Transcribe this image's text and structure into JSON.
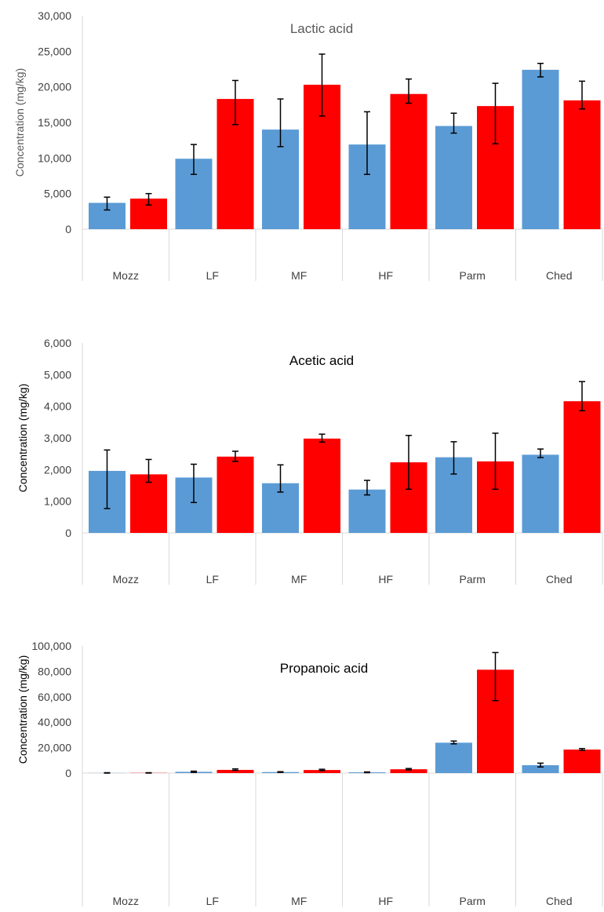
{
  "chart_data": [
    {
      "type": "bar",
      "title": "Lactic acid",
      "ylabel": "Concentration (mg/kg)",
      "categories": [
        "Mozz",
        "LF",
        "MF",
        "HF",
        "Parm",
        "Ched"
      ],
      "ylim": [
        0,
        30000
      ],
      "yticks": [
        0,
        5000,
        10000,
        15000,
        20000,
        25000,
        30000
      ],
      "ytick_labels": [
        "0",
        "5,000",
        "10,000",
        "15,000",
        "20,000",
        "25,000",
        "30,000"
      ],
      "series": [
        {
          "values": [
            3700,
            9900,
            14000,
            11900,
            14500,
            22400
          ],
          "err_low": [
            2700,
            7700,
            11600,
            7700,
            13500,
            21400
          ],
          "err_high": [
            4500,
            11900,
            18300,
            16500,
            16300,
            23300
          ]
        },
        {
          "values": [
            4300,
            18300,
            20300,
            19000,
            17300,
            18100
          ],
          "err_low": [
            3400,
            14700,
            15900,
            17700,
            12000,
            16900
          ],
          "err_high": [
            5000,
            20900,
            24600,
            21100,
            20500,
            20800
          ]
        }
      ],
      "colors": [
        "#5b9bd5",
        "#ff0000"
      ],
      "title_color": "#595959",
      "ylabel_color": "#595959",
      "legend": "none",
      "grid": false
    },
    {
      "type": "bar",
      "title": "Acetic acid",
      "ylabel": "Concentration (mg/kg)",
      "categories": [
        "Mozz",
        "LF",
        "MF",
        "HF",
        "Parm",
        "Ched"
      ],
      "ylim": [
        0,
        6000
      ],
      "yticks": [
        0,
        1000,
        2000,
        3000,
        4000,
        5000,
        6000
      ],
      "ytick_labels": [
        "0",
        "1,000",
        "2,000",
        "3,000",
        "4,000",
        "5,000",
        "6,000"
      ],
      "series": [
        {
          "values": [
            1960,
            1750,
            1570,
            1370,
            2390,
            2470
          ],
          "err_low": [
            770,
            960,
            1290,
            1200,
            1860,
            2380
          ],
          "err_high": [
            2620,
            2170,
            2150,
            1660,
            2880,
            2650
          ]
        },
        {
          "values": [
            1850,
            2410,
            2980,
            2230,
            2260,
            4160
          ],
          "err_low": [
            1600,
            2260,
            2870,
            1380,
            1380,
            3860
          ],
          "err_high": [
            2320,
            2580,
            3120,
            3080,
            3150,
            4780
          ]
        }
      ],
      "colors": [
        "#5b9bd5",
        "#ff0000"
      ],
      "title_color": "#000000",
      "ylabel_color": "#000000",
      "legend": "none",
      "grid": false
    },
    {
      "type": "bar",
      "title": "Propanoic acid",
      "ylabel": "Concentration (mg/kg)",
      "categories": [
        "Mozz",
        "LF",
        "MF",
        "HF",
        "Parm",
        "Ched"
      ],
      "ylim": [
        0,
        100000
      ],
      "yticks": [
        0,
        20000,
        40000,
        60000,
        80000,
        100000
      ],
      "ytick_labels": [
        "0",
        "20,000",
        "40,000",
        "60,000",
        "80,000",
        "100,000"
      ],
      "series": [
        {
          "values": [
            100,
            1000,
            800,
            600,
            23900,
            6200
          ],
          "err_low": [
            0,
            500,
            500,
            300,
            23000,
            4800
          ],
          "err_high": [
            300,
            1500,
            1100,
            900,
            25200,
            7800
          ]
        },
        {
          "values": [
            150,
            2500,
            2400,
            3000,
            81300,
            18500
          ],
          "err_low": [
            0,
            2100,
            2000,
            2500,
            57000,
            17900
          ],
          "err_high": [
            300,
            3300,
            3000,
            3600,
            94800,
            19300
          ]
        }
      ],
      "colors": [
        "#5b9bd5",
        "#ff0000"
      ],
      "title_color": "#000000",
      "ylabel_color": "#000000",
      "legend": "none",
      "grid": false
    }
  ]
}
